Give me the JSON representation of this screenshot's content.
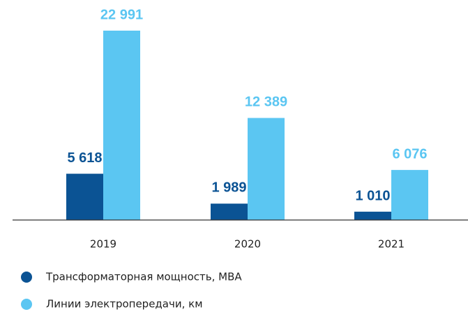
{
  "chart_data": {
    "type": "bar",
    "categories": [
      "2019",
      "2020",
      "2021"
    ],
    "series": [
      {
        "name": "Трансформаторная мощность, МВА",
        "color": "#0b5394",
        "values": [
          5618,
          1989,
          1010
        ],
        "value_labels": [
          "5 618",
          "1 989",
          "1 010"
        ]
      },
      {
        "name": "Линии электропередачи, км",
        "color": "#5bc6f2",
        "values": [
          22991,
          12389,
          6076
        ],
        "value_labels": [
          "22 991",
          "12 389",
          "6 076"
        ]
      }
    ],
    "legend": "bottom-left"
  }
}
